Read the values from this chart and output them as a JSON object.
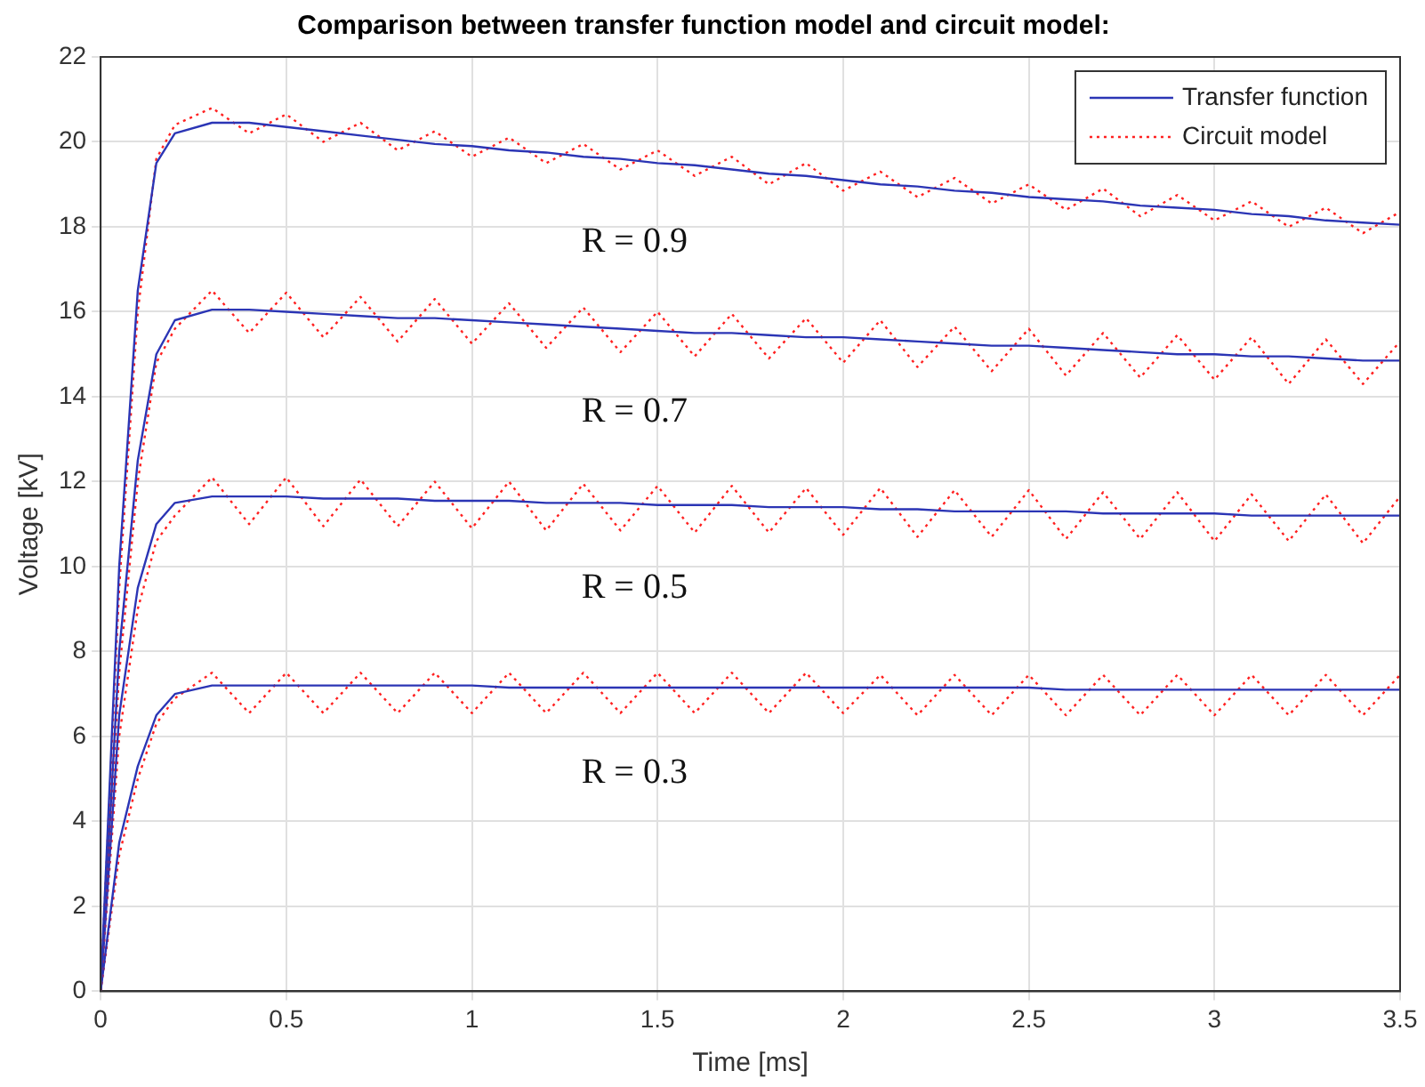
{
  "chart_data": {
    "type": "line",
    "title": "Comparison between transfer function model and circuit model:",
    "xlabel": "Time [ms]",
    "ylabel": "Voltage [kV]",
    "x": [
      0,
      0.05,
      0.1,
      0.15,
      0.2,
      0.3,
      0.4,
      0.5,
      0.6,
      0.7,
      0.8,
      0.9,
      1.0,
      1.1,
      1.2,
      1.3,
      1.4,
      1.5,
      1.6,
      1.7,
      1.8,
      1.9,
      2.0,
      2.1,
      2.2,
      2.3,
      2.4,
      2.5,
      2.6,
      2.7,
      2.8,
      2.9,
      3.0,
      3.1,
      3.2,
      3.3,
      3.4,
      3.5
    ],
    "series": [
      {
        "name": "Transfer function",
        "color": "#2b35b5",
        "line_style": "solid",
        "values": [
          0,
          10,
          16.5,
          19.5,
          20.2,
          20.45,
          20.45,
          20.35,
          20.25,
          20.15,
          20.05,
          19.95,
          19.9,
          19.8,
          19.75,
          19.65,
          19.6,
          19.5,
          19.45,
          19.35,
          19.25,
          19.2,
          19.1,
          19.0,
          18.95,
          18.85,
          18.8,
          18.7,
          18.65,
          18.6,
          18.5,
          18.45,
          18.4,
          18.3,
          18.25,
          18.15,
          18.1,
          18.05
        ]
      },
      {
        "name": "Circuit model",
        "color": "#ff2020",
        "line_style": "dotted",
        "values": [
          0,
          9.5,
          16.0,
          19.6,
          20.4,
          20.8,
          20.2,
          20.65,
          20.0,
          20.45,
          19.8,
          20.25,
          19.65,
          20.1,
          19.5,
          19.95,
          19.35,
          19.8,
          19.2,
          19.65,
          19.0,
          19.5,
          18.85,
          19.3,
          18.7,
          19.15,
          18.55,
          19.0,
          18.4,
          18.9,
          18.25,
          18.75,
          18.15,
          18.6,
          18.0,
          18.45,
          17.85,
          18.35
        ]
      },
      {
        "color": "#2b35b5",
        "line_style": "solid",
        "values": [
          0,
          8,
          12.5,
          15,
          15.8,
          16.05,
          16.05,
          16.0,
          15.95,
          15.9,
          15.85,
          15.85,
          15.8,
          15.75,
          15.7,
          15.65,
          15.6,
          15.55,
          15.5,
          15.5,
          15.45,
          15.4,
          15.4,
          15.35,
          15.3,
          15.25,
          15.2,
          15.2,
          15.15,
          15.1,
          15.05,
          15.0,
          15.0,
          14.95,
          14.95,
          14.9,
          14.85,
          14.85
        ]
      },
      {
        "color": "#ff2020",
        "line_style": "dotted",
        "values": [
          0,
          7.5,
          12,
          14.8,
          15.6,
          16.5,
          15.5,
          16.45,
          15.4,
          16.35,
          15.3,
          16.3,
          15.25,
          16.2,
          15.15,
          16.1,
          15.05,
          16.0,
          14.95,
          15.95,
          14.9,
          15.85,
          14.8,
          15.8,
          14.7,
          15.65,
          14.6,
          15.6,
          14.5,
          15.5,
          14.45,
          15.45,
          14.4,
          15.4,
          14.3,
          15.35,
          14.3,
          15.3
        ]
      },
      {
        "color": "#2b35b5",
        "line_style": "solid",
        "values": [
          0,
          6.5,
          9.5,
          11,
          11.5,
          11.65,
          11.65,
          11.65,
          11.6,
          11.6,
          11.6,
          11.55,
          11.55,
          11.55,
          11.5,
          11.5,
          11.5,
          11.45,
          11.45,
          11.45,
          11.4,
          11.4,
          11.4,
          11.35,
          11.35,
          11.3,
          11.3,
          11.3,
          11.3,
          11.25,
          11.25,
          11.25,
          11.25,
          11.2,
          11.2,
          11.2,
          11.2,
          11.2
        ]
      },
      {
        "color": "#ff2020",
        "line_style": "dotted",
        "values": [
          0,
          6,
          9,
          10.6,
          11.2,
          12.1,
          11.0,
          12.1,
          10.95,
          12.05,
          10.95,
          12.0,
          10.9,
          12.0,
          10.85,
          11.95,
          10.85,
          11.9,
          10.8,
          11.9,
          10.8,
          11.85,
          10.75,
          11.85,
          10.7,
          11.8,
          10.7,
          11.8,
          10.65,
          11.75,
          10.65,
          11.75,
          10.6,
          11.7,
          10.6,
          11.7,
          10.55,
          11.65
        ]
      },
      {
        "color": "#2b35b5",
        "line_style": "solid",
        "values": [
          0,
          3.5,
          5.3,
          6.5,
          7.0,
          7.2,
          7.2,
          7.2,
          7.2,
          7.2,
          7.2,
          7.2,
          7.2,
          7.15,
          7.15,
          7.15,
          7.15,
          7.15,
          7.15,
          7.15,
          7.15,
          7.15,
          7.15,
          7.15,
          7.15,
          7.15,
          7.15,
          7.15,
          7.1,
          7.1,
          7.1,
          7.1,
          7.1,
          7.1,
          7.1,
          7.1,
          7.1,
          7.1
        ]
      },
      {
        "color": "#ff2020",
        "line_style": "dotted",
        "values": [
          0,
          3.2,
          5,
          6.3,
          6.9,
          7.5,
          6.55,
          7.5,
          6.55,
          7.5,
          6.55,
          7.5,
          6.55,
          7.5,
          6.55,
          7.5,
          6.55,
          7.5,
          6.55,
          7.5,
          6.55,
          7.5,
          6.55,
          7.45,
          6.5,
          7.45,
          6.5,
          7.45,
          6.5,
          7.45,
          6.5,
          7.45,
          6.5,
          7.45,
          6.5,
          7.45,
          6.5,
          7.45
        ]
      }
    ],
    "annotations": [
      "R = 0.9",
      "R = 0.7",
      "R = 0.5",
      "R = 0.3"
    ],
    "xlim": [
      0,
      3.5
    ],
    "xticks": [
      0,
      0.5,
      1,
      1.5,
      2,
      2.5,
      3,
      3.5
    ],
    "ylim": [
      0,
      22
    ],
    "yticks": [
      0,
      2,
      4,
      6,
      8,
      10,
      12,
      14,
      16,
      18,
      20,
      22
    ],
    "grid": true,
    "legend": "top right",
    "marker": "none"
  }
}
